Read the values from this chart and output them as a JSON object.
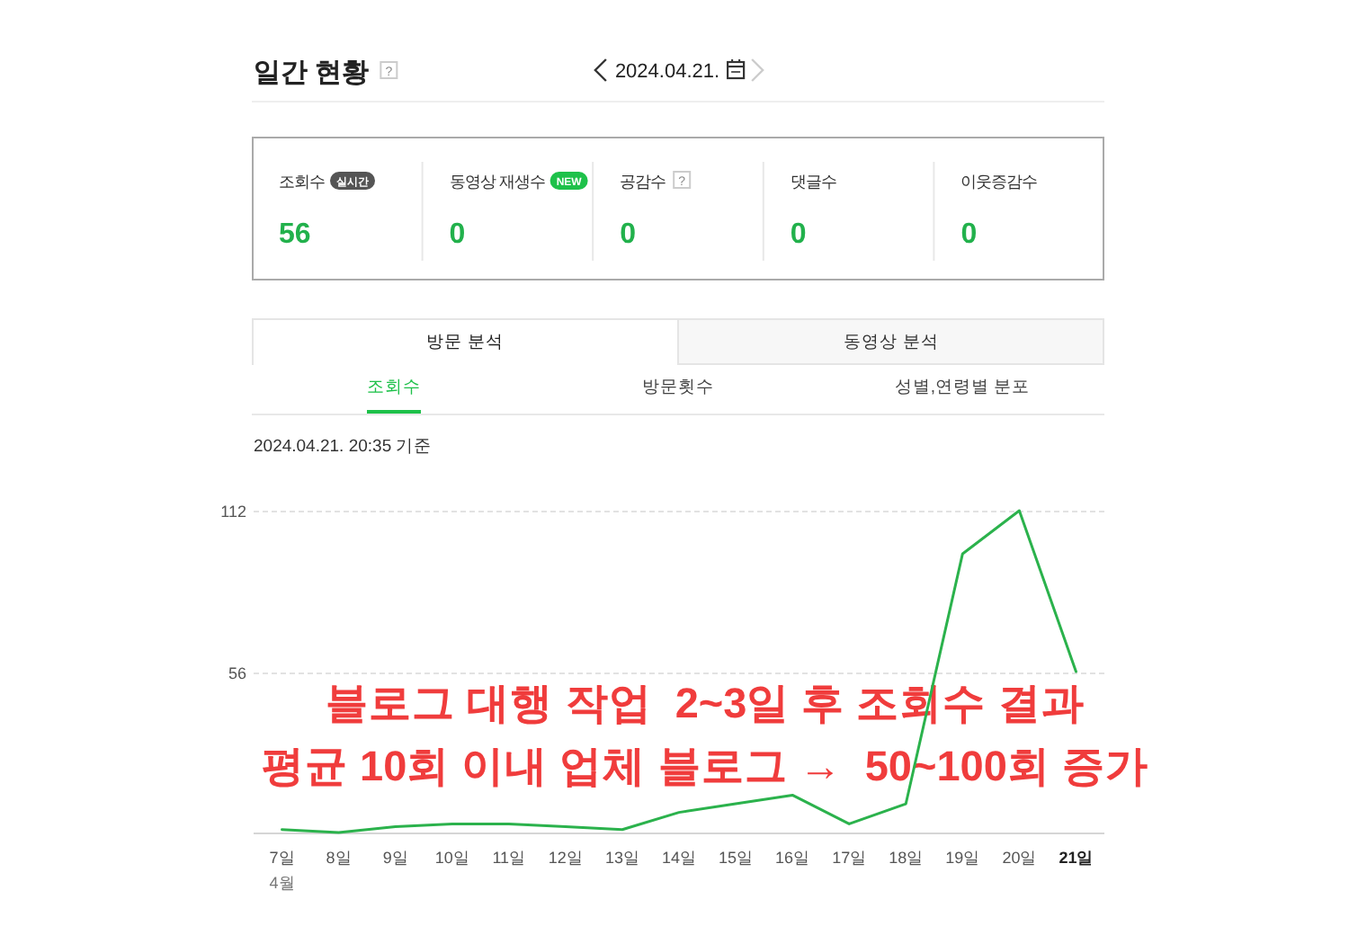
{
  "chart_data": [
    {
      "type": "other",
      "title": "일간 현황",
      "subtitle": "2024.04.21.",
      "categories": [
        "조회수",
        "동영상 재생수",
        "공감수",
        "댓글수",
        "이웃증감수"
      ],
      "values": [
        56,
        0,
        0,
        0,
        0
      ],
      "color": "#22b14c",
      "data_labels": true,
      "annotations": [
        "?",
        "실시간",
        "NEW",
        "?"
      ]
    },
    {
      "type": "line",
      "subtitle": "2024.04.21. 20:35 기준",
      "categories": [
        "7일",
        "8일",
        "9일",
        "10일",
        "11일",
        "12일",
        "13일",
        "14일",
        "15일",
        "16일",
        "17일",
        "18일",
        "19일",
        "20일",
        "21일"
      ],
      "series": [
        {
          "color": "#2bb24c",
          "values": [
            1,
            0,
            2,
            3,
            3,
            2,
            1,
            7,
            10,
            13,
            3,
            10,
            97,
            112,
            56
          ]
        }
      ],
      "ylim": [
        0,
        112
      ],
      "yticks": [
        {
          "value": 0,
          "label": null
        },
        56,
        112
      ],
      "grid": "y",
      "annotations": [
        "방문 분석",
        "동영상 분석",
        "조회수",
        "방문횟수",
        "성별,연령별 분포",
        "4월",
        "블로그 대행 작업  2~3일 후 조회수 결과",
        "평균 10회 이내 업체 블로그 →  50~100회 증가"
      ]
    }
  ]
}
